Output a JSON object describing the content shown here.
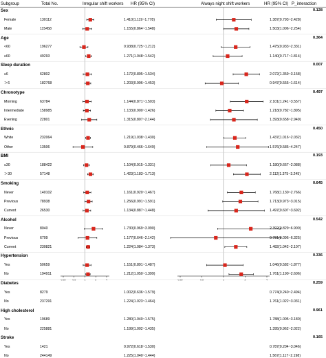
{
  "header": {
    "subgroup": "Subgroup",
    "total": "Total No.",
    "panel1_title": "Irregular shift workers",
    "hr1": "HR (95% CI)",
    "panel2_title": "Always night shift workers",
    "hr2": "HR (95% CI)",
    "p_interaction": "P_interaction"
  },
  "colors": {
    "marker": "#d9261c",
    "line": "#000000",
    "grid": "#9a9a9a"
  },
  "chart_data": [
    {
      "type": "forest",
      "title": "Irregular shift workers",
      "xlabel": "",
      "ylabel": "",
      "reference_line": 1,
      "xlim": [
        0.25,
        4
      ],
      "scale": "log",
      "ticks": [
        0.25,
        0.5,
        1,
        2,
        4
      ],
      "tick_labels": [
        "0.25",
        "0.5",
        "1",
        "2",
        "4"
      ],
      "categories": [
        "Female",
        "Male",
        "<60",
        "≥60",
        "≤6",
        "＞6",
        "Morning",
        "Intermediate",
        "Evening",
        "White",
        "Other",
        "≤30",
        "＞30",
        "Never",
        "Previous",
        "Current",
        "Never",
        "Previous",
        "Current",
        "Yes",
        "No",
        "Yes",
        "No",
        "Yes",
        "No",
        "Yes",
        "No"
      ],
      "series": [
        {
          "values": [
            1.41,
            1.155,
            0.938,
            1.271,
            1.172,
            1.203,
            1.144,
            1.133,
            1.315,
            1.219,
            0.879,
            1.104,
            1.423,
            1.161,
            1.256,
            1.134,
            1.73,
            1.177,
            1.224,
            1.151,
            1.212,
            1.002,
            1.224,
            1.28,
            1.199,
            0.972,
            1.225
          ],
          "lower": [
            1.119,
            0.864,
            0.725,
            1.048,
            0.895,
            0.996,
            0.871,
            0.9,
            0.807,
            1.038,
            0.466,
            0.915,
            1.183,
            0.92,
            0.991,
            0.887,
            0.969,
            0.646,
            1.084,
            0.891,
            1.05,
            0.636,
            1.023,
            1.04,
            1.002,
            0.618,
            1.04
          ],
          "upper": [
            1.778,
            1.548,
            1.212,
            1.542,
            1.534,
            1.453,
            1.503,
            1.426,
            2.144,
            1.43,
            1.649,
            1.331,
            1.713,
            1.467,
            1.591,
            1.448,
            3.09,
            2.142,
            1.373,
            1.487,
            1.399,
            1.579,
            1.464,
            1.575,
            1.435,
            1.53,
            1.444
          ]
        }
      ]
    },
    {
      "type": "forest",
      "title": "Always night shift workers",
      "xlabel": "",
      "ylabel": "",
      "reference_line": 1,
      "xlim": [
        0.25,
        4
      ],
      "scale": "log",
      "ticks": [
        0.25,
        0.5,
        1,
        2,
        4
      ],
      "tick_labels": [
        "0.25",
        "0.5",
        "1",
        "2",
        "4"
      ],
      "categories": [
        "Female",
        "Male",
        "<60",
        "≥60",
        "≤6",
        "＞6",
        "Morning",
        "Intermediate",
        "Evening",
        "White",
        "Other",
        "≤30",
        "＞30",
        "Never",
        "Previous",
        "Current",
        "Never",
        "Previous",
        "Current",
        "Yes",
        "No",
        "Yes",
        "No",
        "Yes",
        "No",
        "Yes",
        "No"
      ],
      "series": [
        {
          "values": [
            1.387,
            1.503,
            1.475,
            1.14,
            2.072,
            0.947,
            2.101,
            1.218,
            1.393,
            1.437,
            1.576,
            1.18,
            2.112,
            1.768,
            1.713,
            1.497,
            2.392,
            0.781,
            1.482,
            1.046,
            1.761,
            0.774,
            1.761,
            1.788,
            1.395,
            0.787,
            1.567
          ],
          "lower": [
            0.793,
            1.006,
            0.933,
            0.717,
            1.359,
            0.555,
            1.241,
            0.782,
            0.658,
            1.016,
            0.585,
            0.667,
            1.375,
            1.13,
            0.973,
            0.607,
            0.829,
            0.096,
            1.042,
            0.582,
            1.19,
            0.24,
            1.022,
            1.005,
            0.962,
            0.204,
            1.117
          ],
          "upper": [
            2.428,
            2.254,
            2.331,
            1.814,
            3.158,
            1.614,
            3.557,
            1.895,
            2.949,
            2.032,
            4.247,
            2.088,
            3.245,
            2.766,
            3.015,
            3.692,
            6.9,
            6.325,
            2.107,
            1.877,
            2.606,
            2.494,
            3.031,
            3.18,
            2.022,
            3.046,
            2.198
          ]
        }
      ]
    }
  ],
  "groups": [
    {
      "label": "Sex",
      "p": "0.128",
      "rows": [
        {
          "sub": "Female",
          "n": "130112",
          "hr1": "1.410(1.119~1.778)",
          "hr2": "1.387(0.793~2.428)"
        },
        {
          "sub": "Male",
          "n": "115458",
          "hr1": "1.155(0.864~1.548)",
          "hr2": "1.503(1.006~2.254)"
        }
      ]
    },
    {
      "label": "Age",
      "p": "0.364",
      "rows": [
        {
          "sub": "<60",
          "n": "196277",
          "hr1": "0.938(0.725~1.212)",
          "hr2": "1.475(0.933~2.331)"
        },
        {
          "sub": "≥60",
          "n": "49293",
          "hr1": "1.271(1.048~1.542)",
          "hr2": "1.140(0.717~1.814)"
        }
      ]
    },
    {
      "label": "Sleep duration",
      "p": "0.007",
      "rows": [
        {
          "sub": "≤6",
          "n": "62802",
          "hr1": "1.172(0.895~1.534)",
          "hr2": "2.072(1.359~3.158)"
        },
        {
          "sub": "＞6",
          "n": "182768",
          "hr1": "1.203(0.996~1.453)",
          "hr2": "0.947(0.555~1.614)"
        }
      ]
    },
    {
      "label": "Chronotype",
      "p": "0.497",
      "rows": [
        {
          "sub": "Morning",
          "n": "63784",
          "hr1": "1.144(0.871~1.503)",
          "hr2": "2.101(1.241~3.557)"
        },
        {
          "sub": "Intermediate",
          "n": "158985",
          "hr1": "1.133(0.900~1.426)",
          "hr2": "1.218(0.782~1.895)"
        },
        {
          "sub": "Evening",
          "n": "22801",
          "hr1": "1.315(0.807~2.144)",
          "hr2": "1.393(0.658~2.949)"
        }
      ]
    },
    {
      "label": "Ethnic",
      "p": "0.450",
      "rows": [
        {
          "sub": "White",
          "n": "232064",
          "hr1": "1.219(1.038~1.430)",
          "hr2": "1.437(1.016~2.032)"
        },
        {
          "sub": "Other",
          "n": "13506",
          "hr1": "0.879(0.466~1.649)",
          "hr2": "1.576(0.585~4.247)"
        }
      ]
    },
    {
      "label": "BMI",
      "p": "0.193",
      "rows": [
        {
          "sub": "≤30",
          "n": "188422",
          "hr1": "1.104(0.915~1.331)",
          "hr2": "1.180(0.667~2.088)"
        },
        {
          "sub": "＞30",
          "n": "57148",
          "hr1": "1.423(1.183~1.713)",
          "hr2": "2.112(1.375~3.245)"
        }
      ]
    },
    {
      "label": "Smoking",
      "p": "0.645",
      "rows": [
        {
          "sub": "Never",
          "n": "140102",
          "hr1": "1.161(0.920~1.467)",
          "hr2": "1.768(1.130~2.766)"
        },
        {
          "sub": "Previous",
          "n": "78938",
          "hr1": "1.256(0.991~1.591)",
          "hr2": "1.713(0.973~3.015)"
        },
        {
          "sub": "Current",
          "n": "26530",
          "hr1": "1.134(0.887~1.448)",
          "hr2": "1.497(0.607~3.692)"
        }
      ]
    },
    {
      "label": "Alcohol",
      "p": "0.542",
      "rows": [
        {
          "sub": "Never",
          "n": "8040",
          "hr1": "1.730(0.969~3.090)",
          "hr2": "2.392(0.829~6.900)"
        },
        {
          "sub": "Previous",
          "n": "6709",
          "hr1": "1.177(0.646~2.142)",
          "hr2": "0.781(0.096~6.325)"
        },
        {
          "sub": "Current",
          "n": "230821",
          "hr1": "1.224(1.084~1.373)",
          "hr2": "1.482(1.042~2.107)"
        }
      ]
    },
    {
      "label": "Hypertension",
      "p": "0.336",
      "rows": [
        {
          "sub": "Yes",
          "n": "50659",
          "hr1": "1.151(0.891~1.487)",
          "hr2": "1.046(0.582~1.877)"
        },
        {
          "sub": "No",
          "n": "194911",
          "hr1": "1.212(1.050~1.399)",
          "hr2": "1.761(1.190~2.606)"
        }
      ]
    },
    {
      "label": "Diabetes",
      "p": "0.259",
      "rows": [
        {
          "sub": "Yes",
          "n": "8279",
          "hr1": "1.002(0.636~1.579)",
          "hr2": "0.774(0.240~2.494)"
        },
        {
          "sub": "No",
          "n": "237291",
          "hr1": "1.224(1.023~1.464)",
          "hr2": "1.761(1.022~3.031)"
        }
      ]
    },
    {
      "label": "High cholesterol",
      "p": "0.961",
      "rows": [
        {
          "sub": "Yes",
          "n": "19689",
          "hr1": "1.280(1.040~1.575)",
          "hr2": "1.788(1.005~3.180)"
        },
        {
          "sub": "No",
          "n": "225881",
          "hr1": "1.199(1.002~1.435)",
          "hr2": "1.395(0.962~2.022)"
        }
      ]
    },
    {
      "label": "Stroke",
      "p": "0.165",
      "rows": [
        {
          "sub": "Yes",
          "n": "1421",
          "hr1": "0.972(0.618~1.530)",
          "hr2": "0.787(0.204~3.046)"
        },
        {
          "sub": "No",
          "n": "244149",
          "hr1": "1.225(1.040~1.444)",
          "hr2": "1.567(1.117~2.198)"
        }
      ]
    }
  ]
}
